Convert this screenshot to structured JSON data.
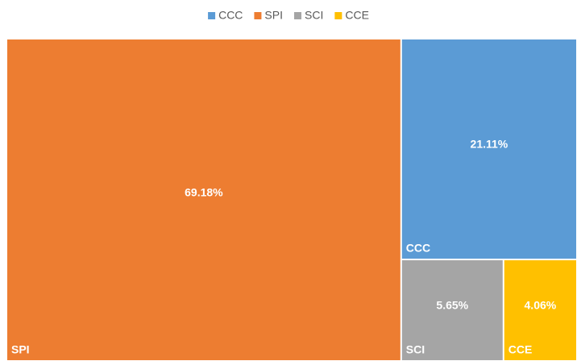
{
  "chart_data": {
    "type": "treemap",
    "categories": [
      "CCC",
      "SPI",
      "SCI",
      "CCE"
    ],
    "values": [
      21.11,
      69.18,
      5.65,
      4.06
    ],
    "value_labels": [
      "21.11%",
      "69.18%",
      "5.65%",
      "4.06%"
    ],
    "colors": [
      "#5b9bd5",
      "#ed7d31",
      "#a5a5a5",
      "#ffc000"
    ],
    "legend": "top"
  }
}
